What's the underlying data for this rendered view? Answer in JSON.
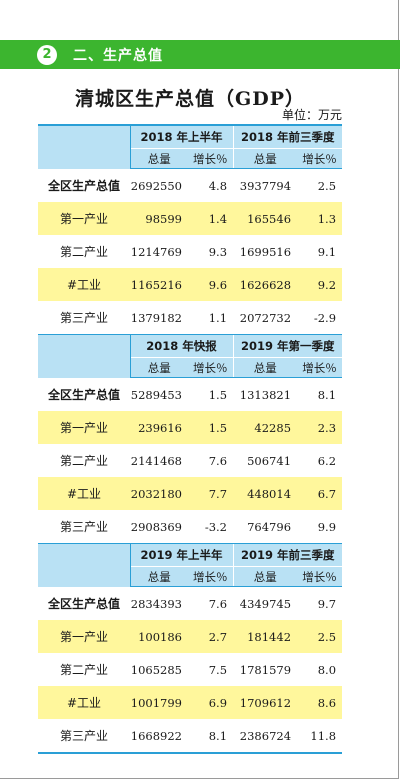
{
  "section": {
    "number": "2",
    "title": "二、生产总值"
  },
  "table": {
    "title": "清城区生产总值（GDP）",
    "unit": "单位：万元",
    "sub_headers": {
      "total": "总量",
      "growth": "增长％"
    },
    "blocks": [
      {
        "periods": [
          "2018 年上半年",
          "2018 年前三季度"
        ],
        "rows": [
          {
            "name": "全区生产总值",
            "bold": true,
            "highlight": false,
            "v1": "2692550",
            "g1": "4.8",
            "v2": "3937794",
            "g2": "2.5"
          },
          {
            "name": "第一产业",
            "bold": false,
            "highlight": true,
            "v1": "98599",
            "g1": "1.4",
            "v2": "165546",
            "g2": "1.3"
          },
          {
            "name": "第二产业",
            "bold": false,
            "highlight": false,
            "v1": "1214769",
            "g1": "9.3",
            "v2": "1699516",
            "g2": "9.1"
          },
          {
            "name": "#工业",
            "bold": false,
            "highlight": true,
            "v1": "1165216",
            "g1": "9.6",
            "v2": "1626628",
            "g2": "9.2"
          },
          {
            "name": "第三产业",
            "bold": false,
            "highlight": false,
            "v1": "1379182",
            "g1": "1.1",
            "v2": "2072732",
            "g2": "-2.9"
          }
        ]
      },
      {
        "periods": [
          "2018 年快报",
          "2019 年第一季度"
        ],
        "rows": [
          {
            "name": "全区生产总值",
            "bold": true,
            "highlight": false,
            "v1": "5289453",
            "g1": "1.5",
            "v2": "1313821",
            "g2": "8.1"
          },
          {
            "name": "第一产业",
            "bold": false,
            "highlight": true,
            "v1": "239616",
            "g1": "1.5",
            "v2": "42285",
            "g2": "2.3"
          },
          {
            "name": "第二产业",
            "bold": false,
            "highlight": false,
            "v1": "2141468",
            "g1": "7.6",
            "v2": "506741",
            "g2": "6.2"
          },
          {
            "name": "#工业",
            "bold": false,
            "highlight": true,
            "v1": "2032180",
            "g1": "7.7",
            "v2": "448014",
            "g2": "6.7"
          },
          {
            "name": "第三产业",
            "bold": false,
            "highlight": false,
            "v1": "2908369",
            "g1": "-3.2",
            "v2": "764796",
            "g2": "9.9"
          }
        ]
      },
      {
        "periods": [
          "2019 年上半年",
          "2019 年前三季度"
        ],
        "rows": [
          {
            "name": "全区生产总值",
            "bold": true,
            "highlight": false,
            "v1": "2834393",
            "g1": "7.6",
            "v2": "4349745",
            "g2": "9.7"
          },
          {
            "name": "第一产业",
            "bold": false,
            "highlight": true,
            "v1": "100186",
            "g1": "2.7",
            "v2": "181442",
            "g2": "2.5"
          },
          {
            "name": "第二产业",
            "bold": false,
            "highlight": false,
            "v1": "1065285",
            "g1": "7.5",
            "v2": "1781579",
            "g2": "8.0"
          },
          {
            "name": "#工业",
            "bold": false,
            "highlight": true,
            "v1": "1001799",
            "g1": "6.9",
            "v2": "1709612",
            "g2": "8.6"
          },
          {
            "name": "第三产业",
            "bold": false,
            "highlight": false,
            "v1": "1668922",
            "g1": "8.1",
            "v2": "2386724",
            "g2": "11.8"
          }
        ]
      }
    ]
  }
}
